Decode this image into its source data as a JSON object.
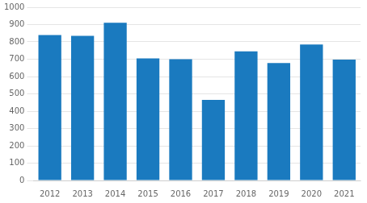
{
  "chart_data": {
    "type": "bar",
    "categories": [
      "2012",
      "2013",
      "2014",
      "2015",
      "2016",
      "2017",
      "2018",
      "2019",
      "2020",
      "2021"
    ],
    "values": [
      840,
      835,
      910,
      705,
      700,
      465,
      745,
      678,
      785,
      698
    ],
    "color": "#1a7abf",
    "ylim": [
      0,
      1000
    ],
    "yticks": [
      0,
      100,
      200,
      300,
      400,
      500,
      600,
      700,
      800,
      900,
      1000
    ],
    "grid": true
  }
}
